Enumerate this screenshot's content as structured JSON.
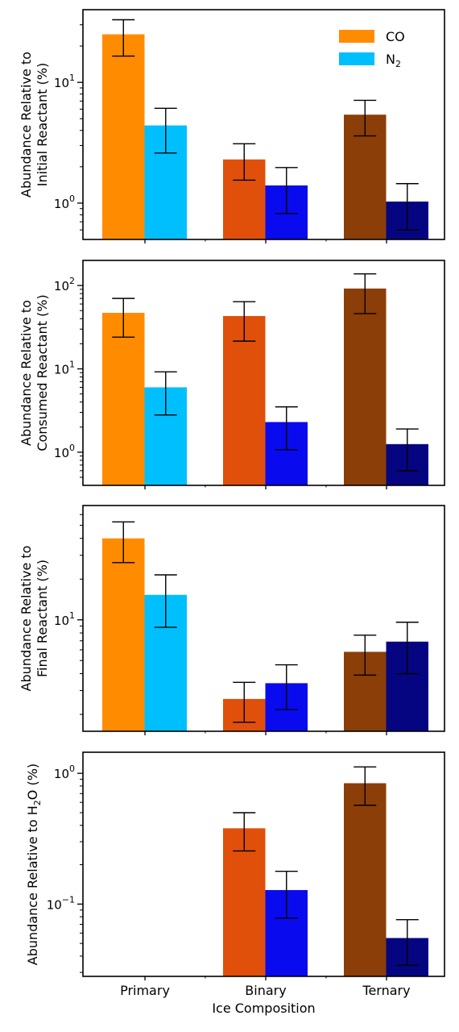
{
  "chart_data": {
    "type": "bar",
    "log_scale": true,
    "grid": false,
    "legend_placement": "top-right",
    "legend_panel": 0,
    "categories": [
      "Primary",
      "Binary",
      "Ternary"
    ],
    "xlabel": "Ice Composition",
    "legend": [
      {
        "label": "CO",
        "color": "#ff8c00"
      },
      {
        "label": "N2",
        "color": "#00bfff"
      }
    ],
    "bar_colors": {
      "CO": [
        "#ff8c00",
        "#e0500a",
        "#8b3e07"
      ],
      "N2": [
        "#00bfff",
        "#0a0aef",
        "#050581"
      ]
    },
    "panels": [
      {
        "ylabel": [
          "Abundance Relative to",
          "Initial Reactant (%)"
        ],
        "ylim": [
          0.5,
          40
        ],
        "yticks": [
          {
            "value": 1,
            "base": "10",
            "exp": "0"
          },
          {
            "value": 10,
            "base": "10",
            "exp": "1"
          }
        ],
        "series": [
          {
            "name": "CO",
            "values": [
              25,
              2.3,
              5.4
            ],
            "err_low": [
              16.5,
              1.55,
              3.6
            ],
            "err_high": [
              33,
              3.1,
              7.1
            ]
          },
          {
            "name": "N2",
            "values": [
              4.4,
              1.4,
              1.03
            ],
            "err_low": [
              2.6,
              0.82,
              0.6
            ],
            "err_high": [
              6.1,
              1.97,
              1.45
            ]
          }
        ]
      },
      {
        "ylabel": [
          "Abundance Relative to",
          "Consumed Reactant (%)"
        ],
        "ylim": [
          0.4,
          200
        ],
        "yticks": [
          {
            "value": 1,
            "base": "10",
            "exp": "0"
          },
          {
            "value": 10,
            "base": "10",
            "exp": "1"
          },
          {
            "value": 100,
            "base": "10",
            "exp": "2"
          }
        ],
        "series": [
          {
            "name": "CO",
            "values": [
              47,
              43,
              92
            ],
            "err_low": [
              24,
              21.5,
              46
            ],
            "err_high": [
              70,
              64,
              138
            ]
          },
          {
            "name": "N2",
            "values": [
              6,
              2.3,
              1.25
            ],
            "err_low": [
              2.8,
              1.07,
              0.6
            ],
            "err_high": [
              9.2,
              3.5,
              1.9
            ]
          }
        ]
      },
      {
        "ylabel": [
          "Abundance Relative to",
          "Final Reactant (%)"
        ],
        "ylim": [
          1.5,
          70
        ],
        "yticks": [
          {
            "value": 10,
            "base": "10",
            "exp": "1"
          }
        ],
        "series": [
          {
            "name": "CO",
            "values": [
              40,
              2.6,
              5.8
            ],
            "err_low": [
              26.5,
              1.75,
              3.9
            ],
            "err_high": [
              53,
              3.45,
              7.7
            ]
          },
          {
            "name": "N2",
            "values": [
              15.3,
              3.4,
              6.9
            ],
            "err_low": [
              8.8,
              2.17,
              4.0
            ],
            "err_high": [
              21.5,
              4.65,
              9.6
            ]
          }
        ]
      },
      {
        "ylabel": [
          "Abundance Relative to H",
          "2",
          "O (%)"
        ],
        "ylim": [
          0.028,
          1.45
        ],
        "yticks": [
          {
            "value": 0.1,
            "base": "10",
            "exp": "−1"
          },
          {
            "value": 1,
            "base": "10",
            "exp": "0"
          }
        ],
        "series": [
          {
            "name": "CO",
            "values": [
              null,
              0.38,
              0.84
            ],
            "err_low": [
              null,
              0.255,
              0.57
            ],
            "err_high": [
              null,
              0.5,
              1.12
            ]
          },
          {
            "name": "N2",
            "values": [
              null,
              0.128,
              0.055
            ],
            "err_low": [
              null,
              0.078,
              0.034
            ],
            "err_high": [
              null,
              0.178,
              0.076
            ]
          }
        ]
      }
    ]
  }
}
